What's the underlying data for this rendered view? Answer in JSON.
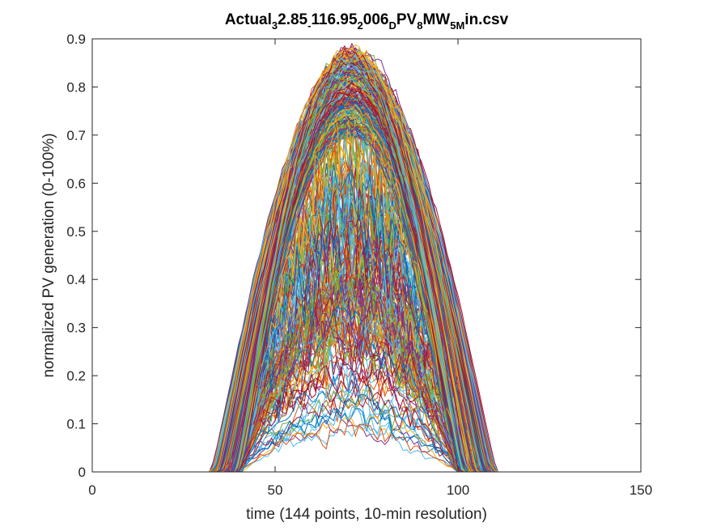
{
  "chart_data": {
    "type": "line",
    "title": {
      "parts": [
        {
          "t": "Actual",
          "s": "normal"
        },
        {
          "t": "3",
          "s": "sub"
        },
        {
          "t": "2.85",
          "s": "normal"
        },
        {
          "t": "-",
          "s": "sub"
        },
        {
          "t": "116.95",
          "s": "normal"
        },
        {
          "t": "2",
          "s": "sub"
        },
        {
          "t": "006",
          "s": "normal"
        },
        {
          "t": "D",
          "s": "sub"
        },
        {
          "t": "PV",
          "s": "normal"
        },
        {
          "t": "8",
          "s": "sub"
        },
        {
          "t": "MW",
          "s": "normal"
        },
        {
          "t": "5M",
          "s": "sub"
        },
        {
          "t": "in.csv",
          "s": "normal"
        }
      ]
    },
    "xlabel": "time (144 points, 10-min resolution)",
    "ylabel": "normalized PV generation (0-100%)",
    "xlim": [
      0,
      150
    ],
    "ylim": [
      0,
      0.9
    ],
    "xticks": [
      {
        "value": 0,
        "label": "0"
      },
      {
        "value": 50,
        "label": "50"
      },
      {
        "value": 100,
        "label": "100"
      },
      {
        "value": 150,
        "label": "150"
      }
    ],
    "yticks": [
      {
        "value": 0,
        "label": "0"
      },
      {
        "value": 0.1,
        "label": "0.1"
      },
      {
        "value": 0.2,
        "label": "0.2"
      },
      {
        "value": 0.3,
        "label": "0.3"
      },
      {
        "value": 0.4,
        "label": "0.4"
      },
      {
        "value": 0.5,
        "label": "0.5"
      },
      {
        "value": 0.6,
        "label": "0.6"
      },
      {
        "value": 0.7,
        "label": "0.7"
      },
      {
        "value": 0.8,
        "label": "0.8"
      },
      {
        "value": 0.9,
        "label": "0.9"
      }
    ],
    "grid": false,
    "legend": "none",
    "n_points_per_series": 144,
    "x_range": [
      1,
      144
    ],
    "n_series": 365,
    "colors": [
      "#0072BD",
      "#D95319",
      "#EDB120",
      "#7E2F8E",
      "#77AC30",
      "#4DBEEE",
      "#A2142F"
    ],
    "profile_summary": {
      "sunrise_x_range": [
        33,
        40
      ],
      "sunset_x_range": [
        98,
        110
      ],
      "peak_x": 72,
      "peak_max": 0.89,
      "clear_day_peak_range": [
        0.6,
        0.88
      ]
    },
    "representative_series": [
      {
        "x": [
          1,
          36,
          40,
          45,
          50,
          55,
          60,
          65,
          70,
          72,
          75,
          80,
          85,
          90,
          95,
          100,
          105,
          108,
          144
        ],
        "y": [
          0,
          0,
          0.08,
          0.22,
          0.38,
          0.53,
          0.66,
          0.76,
          0.82,
          0.83,
          0.82,
          0.77,
          0.68,
          0.55,
          0.4,
          0.23,
          0.07,
          0,
          0
        ]
      },
      {
        "x": [
          1,
          38,
          42,
          47,
          52,
          57,
          62,
          67,
          72,
          77,
          82,
          87,
          92,
          97,
          101,
          104,
          144
        ],
        "y": [
          0,
          0,
          0.06,
          0.18,
          0.33,
          0.47,
          0.59,
          0.68,
          0.72,
          0.69,
          0.61,
          0.5,
          0.36,
          0.2,
          0.07,
          0,
          0
        ]
      },
      {
        "x": [
          1,
          45,
          50,
          55,
          60,
          65,
          70,
          75,
          80,
          85,
          90,
          95,
          144
        ],
        "y": [
          0,
          0,
          0.05,
          0.12,
          0.18,
          0.25,
          0.31,
          0.22,
          0.17,
          0.1,
          0.04,
          0,
          0
        ]
      }
    ]
  }
}
